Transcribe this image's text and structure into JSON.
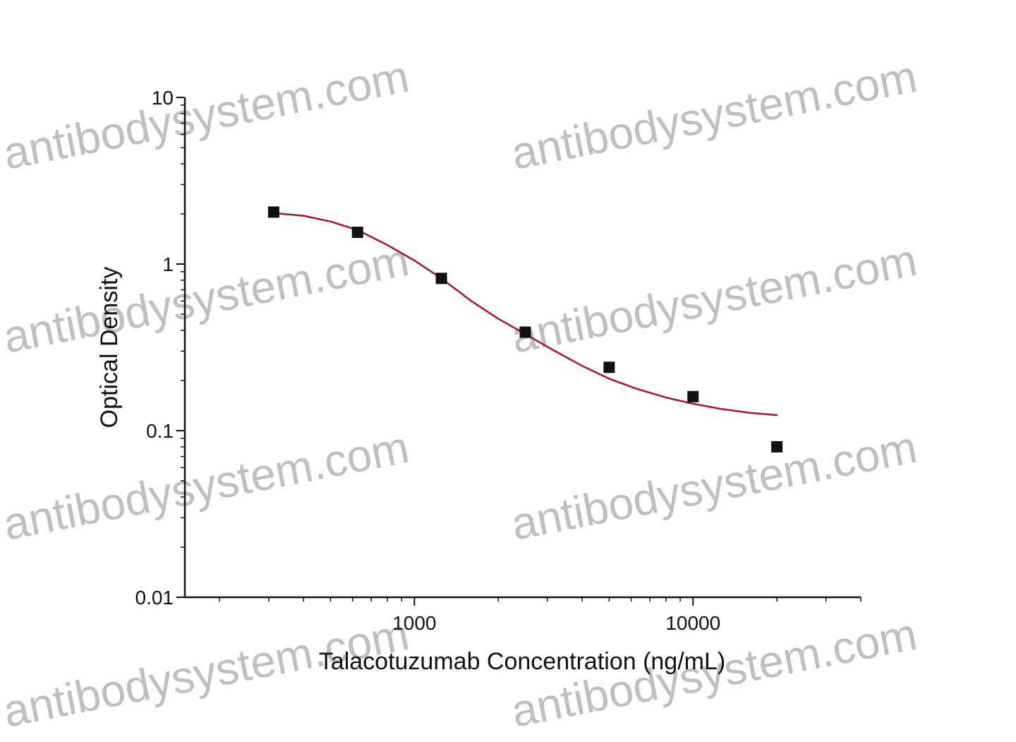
{
  "watermark": "antibodysystem.com",
  "chart_data": {
    "type": "scatter",
    "title": "",
    "xlabel": "Talacotuzumab Concentration (ng/mL)",
    "ylabel": "Optical Density",
    "x_scale": "log",
    "y_scale": "log",
    "xlim": [
      150,
      40000
    ],
    "ylim": [
      0.01,
      10
    ],
    "x_tick_labels": [
      {
        "value": 1000,
        "label": "1000"
      },
      {
        "value": 10000,
        "label": "10000"
      }
    ],
    "y_tick_labels": [
      {
        "value": 10,
        "label": "10"
      },
      {
        "value": 1,
        "label": "1"
      },
      {
        "value": 0.1,
        "label": "0.1"
      },
      {
        "value": 0.01,
        "label": "0.01"
      }
    ],
    "grid": false,
    "legend": "none",
    "series": [
      {
        "kind": "points",
        "marker": "square",
        "color": "#111111",
        "points": [
          {
            "x": 312.5,
            "y": 2.05
          },
          {
            "x": 625,
            "y": 1.55
          },
          {
            "x": 1250,
            "y": 0.82
          },
          {
            "x": 2500,
            "y": 0.39
          },
          {
            "x": 5000,
            "y": 0.24
          },
          {
            "x": 10000,
            "y": 0.16
          },
          {
            "x": 20000,
            "y": 0.08
          }
        ]
      },
      {
        "kind": "fit-curve",
        "color": "#a3182a",
        "points": [
          {
            "x": 312.5,
            "y": 2.02
          },
          {
            "x": 400,
            "y": 1.95
          },
          {
            "x": 500,
            "y": 1.8
          },
          {
            "x": 625,
            "y": 1.6
          },
          {
            "x": 800,
            "y": 1.3
          },
          {
            "x": 1000,
            "y": 1.05
          },
          {
            "x": 1250,
            "y": 0.82
          },
          {
            "x": 1600,
            "y": 0.6
          },
          {
            "x": 2000,
            "y": 0.47
          },
          {
            "x": 2500,
            "y": 0.38
          },
          {
            "x": 3200,
            "y": 0.3
          },
          {
            "x": 4000,
            "y": 0.245
          },
          {
            "x": 5000,
            "y": 0.205
          },
          {
            "x": 6300,
            "y": 0.178
          },
          {
            "x": 8000,
            "y": 0.158
          },
          {
            "x": 10000,
            "y": 0.145
          },
          {
            "x": 12600,
            "y": 0.135
          },
          {
            "x": 16000,
            "y": 0.128
          },
          {
            "x": 20000,
            "y": 0.124
          }
        ]
      }
    ]
  }
}
